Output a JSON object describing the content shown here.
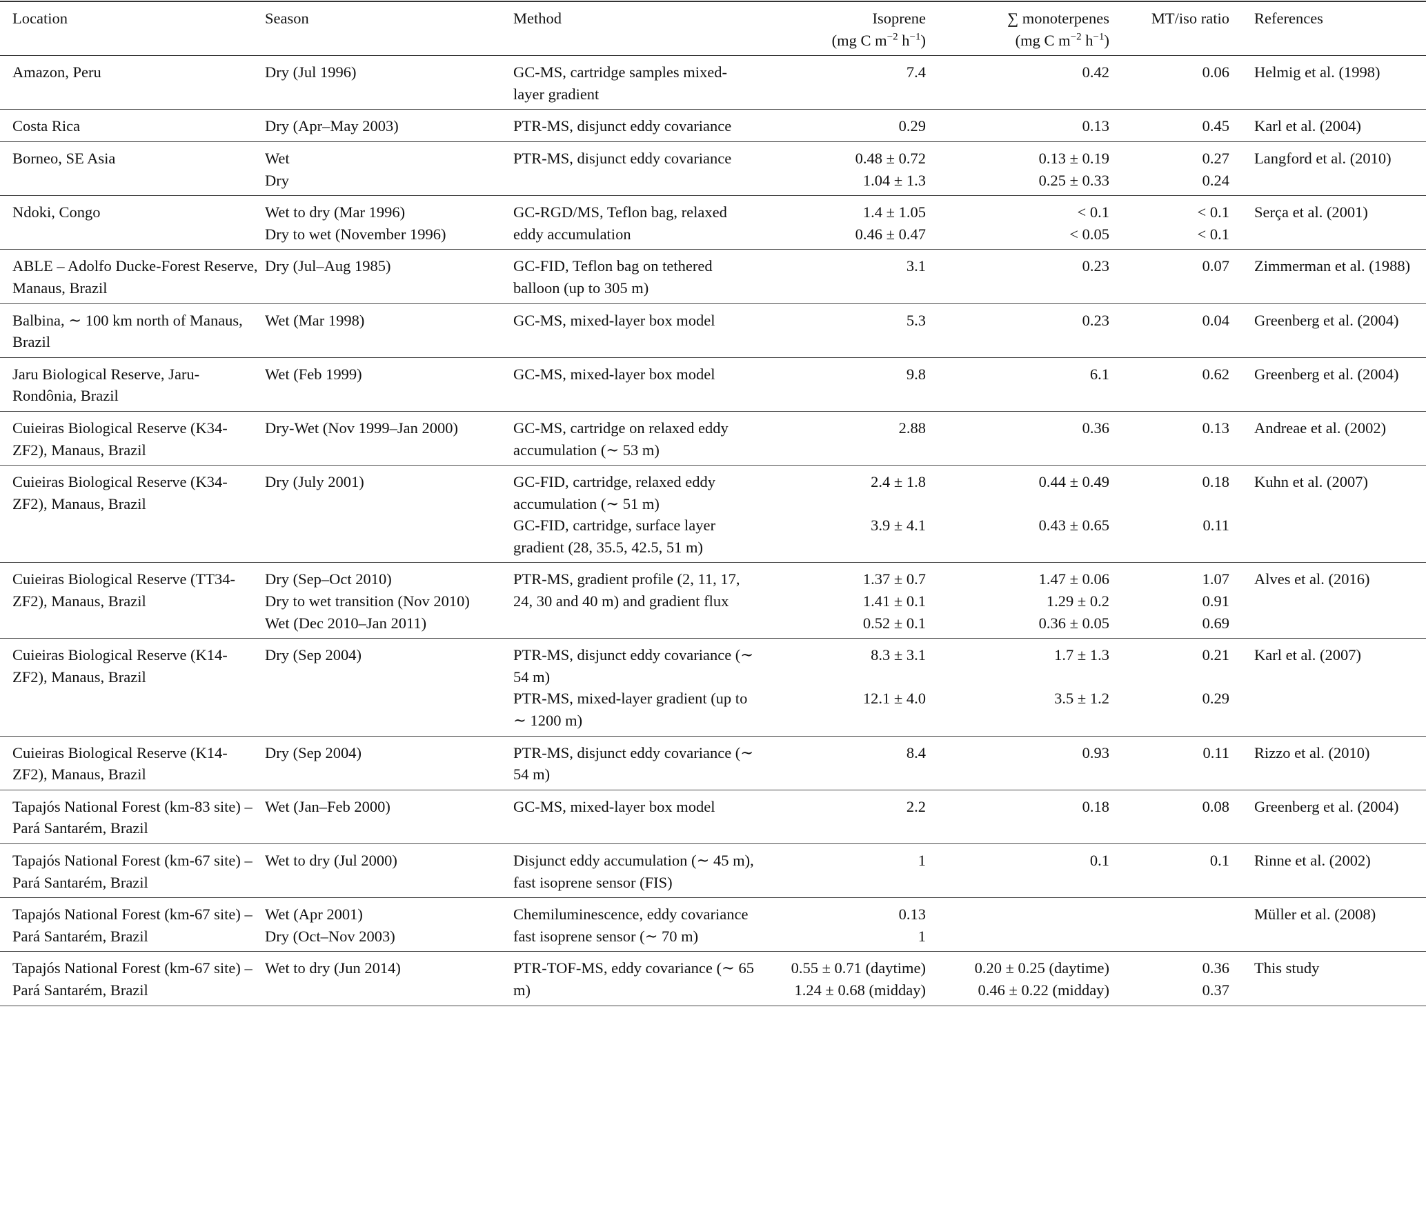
{
  "header": {
    "location": "Location",
    "season": "Season",
    "method": "Method",
    "isoprene": "Isoprene",
    "monoterpenes": "∑ monoterpenes",
    "ratio": "MT/iso ratio",
    "references": "References",
    "unit_open": "(mg C m",
    "unit_exp1": "−2",
    "unit_mid": " h",
    "unit_exp2": "−1",
    "unit_close": ")"
  },
  "groups": [
    {
      "location": "Amazon, Peru",
      "reference": "Helmig et al. (1998)",
      "rows": [
        {
          "season": "Dry (Jul 1996)",
          "method": "GC-MS, cartridge samples mixed-layer gradient",
          "isoprene": "7.4",
          "monoterpenes": "0.42",
          "ratio": "0.06"
        }
      ]
    },
    {
      "location": "Costa Rica",
      "reference": "Karl et al. (2004)",
      "rows": [
        {
          "season": "Dry (Apr–May 2003)",
          "method": "PTR-MS, disjunct eddy covariance",
          "isoprene": "0.29",
          "monoterpenes": "0.13",
          "ratio": "0.45"
        }
      ]
    },
    {
      "location": "Borneo, SE Asia",
      "reference": "Langford et al. (2010)",
      "rows": [
        {
          "season": "Wet",
          "method": "PTR-MS, disjunct eddy covariance",
          "isoprene": "0.48 ± 0.72",
          "monoterpenes": "0.13 ± 0.19",
          "ratio": "0.27"
        },
        {
          "season": "Dry",
          "isoprene": "1.04 ± 1.3",
          "monoterpenes": "0.25 ± 0.33",
          "ratio": "0.24"
        }
      ]
    },
    {
      "location": "Ndoki, Congo",
      "reference": "Serça et al. (2001)",
      "rows": [
        {
          "season": "Wet to dry (Mar 1996)",
          "method": "GC-RGD/MS, Teflon bag, relaxed eddy accumulation",
          "isoprene": "1.4 ± 1.05",
          "monoterpenes": "< 0.1",
          "ratio": "< 0.1"
        },
        {
          "season": "Dry to wet (November 1996)",
          "isoprene": "0.46 ± 0.47",
          "monoterpenes": "< 0.05",
          "ratio": "< 0.1"
        }
      ]
    },
    {
      "location": "ABLE – Adolfo Ducke-Forest Reserve, Manaus, Brazil",
      "reference": "Zimmerman et al. (1988)",
      "rows": [
        {
          "season": "Dry (Jul–Aug 1985)",
          "method": "GC-FID, Teflon bag on tethered balloon (up to 305 m)",
          "isoprene": "3.1",
          "monoterpenes": "0.23",
          "ratio": "0.07"
        }
      ]
    },
    {
      "location": "Balbina, ∼ 100 km north of Manaus, Brazil",
      "reference": "Greenberg et al. (2004)",
      "rows": [
        {
          "season": "Wet (Mar 1998)",
          "method": "GC-MS, mixed-layer box model",
          "isoprene": "5.3",
          "monoterpenes": "0.23",
          "ratio": "0.04"
        }
      ]
    },
    {
      "location": "Jaru Biological Reserve, Jaru-Rondônia, Brazil",
      "reference": "Greenberg et al. (2004)",
      "rows": [
        {
          "season": "Wet (Feb 1999)",
          "method": "GC-MS, mixed-layer box model",
          "isoprene": "9.8",
          "monoterpenes": "6.1",
          "ratio": "0.62"
        }
      ]
    },
    {
      "location": "Cuieiras Biological Reserve (K34-ZF2), Manaus, Brazil",
      "reference": "Andreae et al. (2002)",
      "rows": [
        {
          "season": "Dry-Wet (Nov 1999–Jan 2000)",
          "method": "GC-MS, cartridge on relaxed eddy accumulation (∼ 53 m)",
          "isoprene": "2.88",
          "monoterpenes": "0.36",
          "ratio": "0.13"
        }
      ]
    },
    {
      "location": "Cuieiras Biological Reserve (K34-ZF2), Manaus, Brazil",
      "reference": "Kuhn et al. (2007)",
      "rows": [
        {
          "season": "Dry (July 2001)",
          "method": "GC-FID, cartridge, relaxed eddy accumulation (∼ 51 m)",
          "isoprene": "2.4 ± 1.8",
          "monoterpenes": "0.44 ± 0.49",
          "ratio": "0.18"
        },
        {
          "method": "GC-FID, cartridge, surface layer gradient (28, 35.5, 42.5, 51 m)",
          "isoprene": "3.9 ± 4.1",
          "monoterpenes": "0.43 ± 0.65",
          "ratio": "0.11"
        }
      ]
    },
    {
      "location": "Cuieiras Biological Reserve (TT34-ZF2), Manaus, Brazil",
      "reference": "Alves et al. (2016)",
      "rows": [
        {
          "season": "Dry (Sep–Oct 2010)",
          "method": "PTR-MS, gradient profile (2, 11, 17, 24, 30 and 40 m) and gradient flux",
          "isoprene": "1.37 ± 0.7",
          "monoterpenes": "1.47 ± 0.06",
          "ratio": "1.07"
        },
        {
          "season": "Dry to wet transition (Nov 2010)",
          "isoprene": "1.41 ± 0.1",
          "monoterpenes": "1.29 ± 0.2",
          "ratio": "0.91"
        },
        {
          "season": "Wet (Dec 2010–Jan 2011)",
          "isoprene": "0.52 ± 0.1",
          "monoterpenes": "0.36 ± 0.05",
          "ratio": "0.69"
        }
      ]
    },
    {
      "location": "Cuieiras Biological Reserve (K14-ZF2), Manaus, Brazil",
      "reference": "Karl et al. (2007)",
      "rows": [
        {
          "season": "Dry (Sep 2004)",
          "method": "PTR-MS, disjunct eddy covariance (∼ 54 m)",
          "isoprene": "8.3 ± 3.1",
          "monoterpenes": "1.7 ± 1.3",
          "ratio": "0.21"
        },
        {
          "method": "PTR-MS, mixed-layer gradient (up to ∼ 1200 m)",
          "isoprene": "12.1 ± 4.0",
          "monoterpenes": "3.5 ± 1.2",
          "ratio": "0.29"
        }
      ]
    },
    {
      "location": "Cuieiras Biological Reserve (K14-ZF2), Manaus, Brazil",
      "reference": "Rizzo et al. (2010)",
      "rows": [
        {
          "season": "Dry (Sep 2004)",
          "method": "PTR-MS, disjunct eddy covariance (∼ 54 m)",
          "isoprene": "8.4",
          "monoterpenes": "0.93",
          "ratio": "0.11"
        }
      ]
    },
    {
      "location": "Tapajós National Forest (km-83 site) – Pará Santarém, Brazil",
      "reference": "Greenberg et al. (2004)",
      "rows": [
        {
          "season": "Wet (Jan–Feb 2000)",
          "method": "GC-MS, mixed-layer box model",
          "isoprene": "2.2",
          "monoterpenes": "0.18",
          "ratio": "0.08"
        }
      ]
    },
    {
      "location": "Tapajós National Forest (km-67 site) – Pará Santarém, Brazil",
      "reference": "Rinne et al. (2002)",
      "rows": [
        {
          "season": "Wet to dry (Jul 2000)",
          "method": "Disjunct eddy accumulation (∼ 45 m), fast isoprene sensor (FIS)",
          "isoprene": "1",
          "monoterpenes": "0.1",
          "ratio": "0.1"
        }
      ]
    },
    {
      "location": "Tapajós National Forest (km-67 site) – Pará Santarém, Brazil",
      "reference": "Müller et al. (2008)",
      "rows": [
        {
          "season": "Wet (Apr 2001)",
          "method": "Chemiluminescence, eddy covariance fast isoprene sensor (∼ 70 m)",
          "isoprene": "0.13",
          "monoterpenes": "",
          "ratio": ""
        },
        {
          "season": "Dry (Oct–Nov 2003)",
          "isoprene": "1",
          "monoterpenes": "",
          "ratio": ""
        }
      ]
    },
    {
      "location": "Tapajós National Forest (km-67 site) – Pará Santarém, Brazil",
      "reference": "This study",
      "rows": [
        {
          "season": "Wet to dry (Jun 2014)",
          "method": "PTR-TOF-MS, eddy covariance (∼ 65 m)",
          "isoprene": "0.55 ± 0.71 (daytime)",
          "monoterpenes": "0.20 ± 0.25 (daytime)",
          "ratio": "0.36"
        },
        {
          "isoprene": "1.24 ± 0.68 (midday)",
          "monoterpenes": "0.46 ± 0.22 (midday)",
          "ratio": "0.37"
        }
      ]
    }
  ]
}
